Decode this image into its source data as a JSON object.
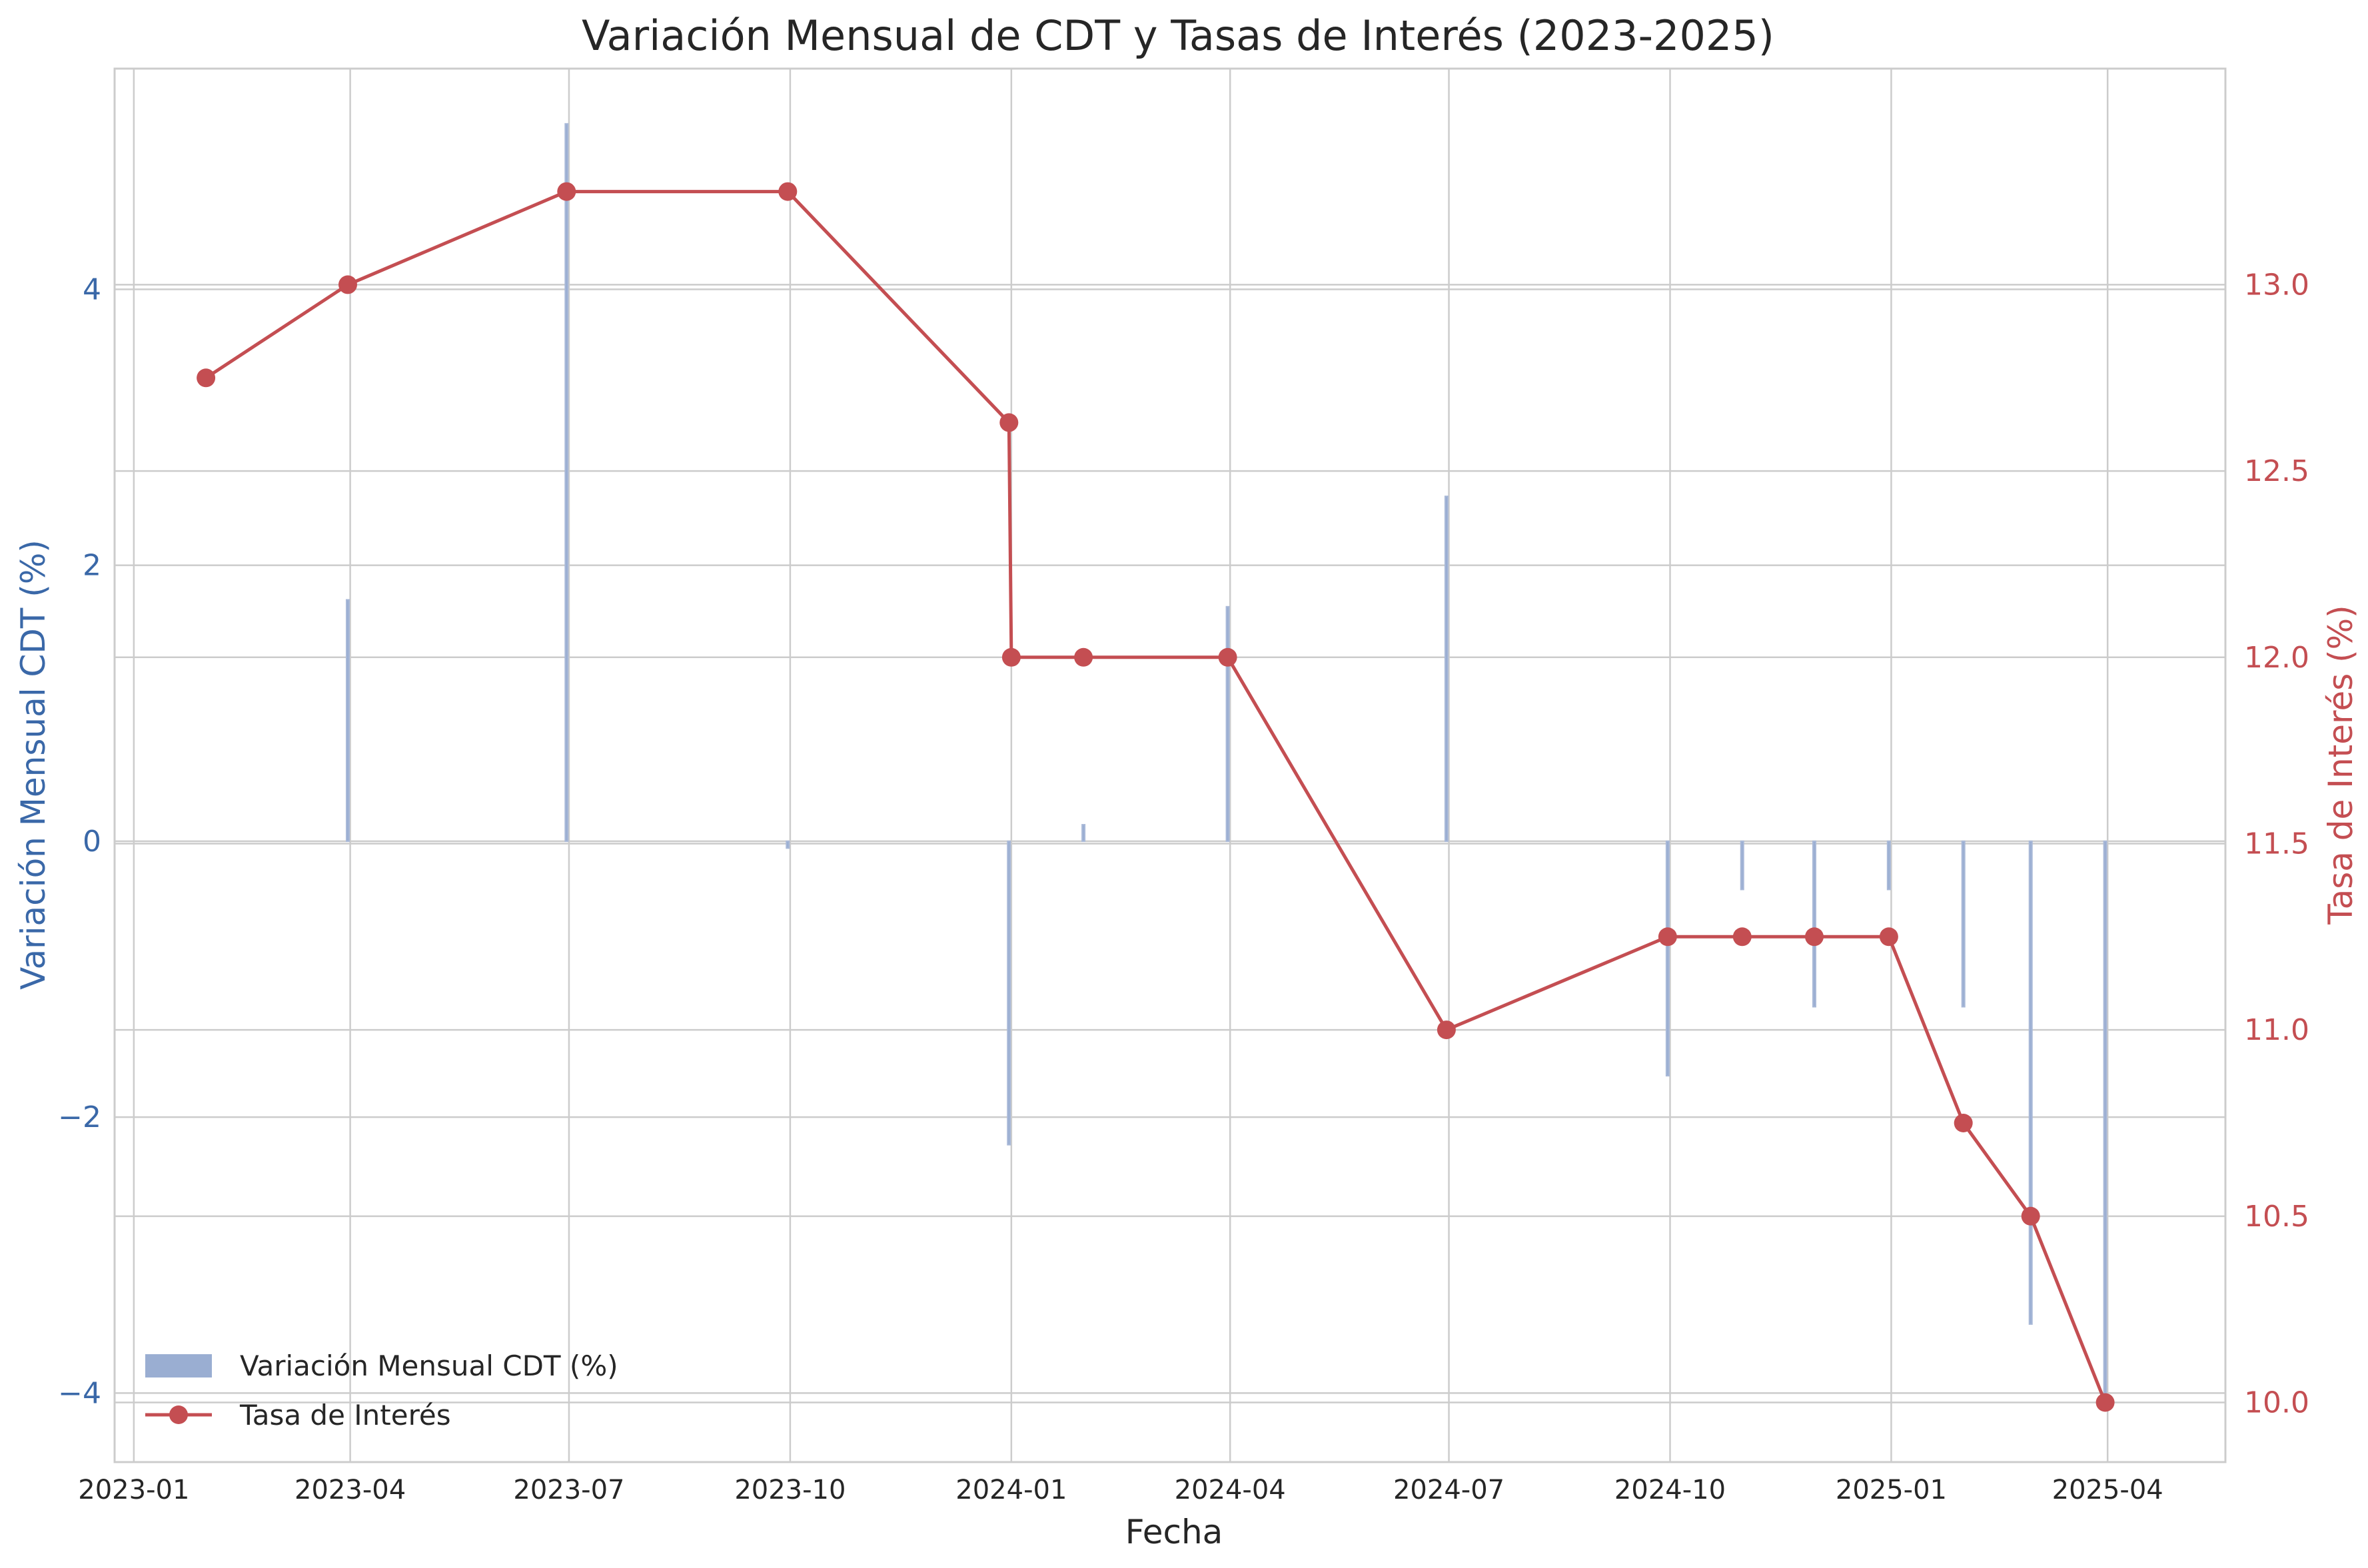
{
  "chart_data": {
    "type": "bar+line",
    "title": "Variación Mensual de CDT y Tasas de Interés (2023-2025)",
    "xlabel": "Fecha",
    "ylabel_left": "Variación Mensual CDT (%)",
    "ylabel_right": "Tasa de Interés (%)",
    "x_ticks": [
      "2023-01",
      "2023-04",
      "2023-07",
      "2023-10",
      "2024-01",
      "2024-04",
      "2024-07",
      "2024-10",
      "2025-01",
      "2025-04"
    ],
    "y_left_ticks": [
      "−4",
      "−2",
      "0",
      "2",
      "4"
    ],
    "y_right_ticks": [
      "10.0",
      "10.5",
      "11.0",
      "11.5",
      "12.0",
      "12.5",
      "13.0"
    ],
    "xlim": [
      "2022-12-24",
      "2025-05-20"
    ],
    "ylim_left": [
      -4.5,
      5.6
    ],
    "ylim_right": [
      9.84,
      13.58
    ],
    "grid": true,
    "legend_position": "lower-left",
    "colors": {
      "bars": "#9aaed2",
      "line": "#c44e52",
      "left_axis": "#3a68a8",
      "right_axis": "#c44e52"
    },
    "series": [
      {
        "name": "Variación Mensual CDT (%)",
        "type": "bar",
        "x": [
          "2023-03-31",
          "2023-06-30",
          "2023-09-30",
          "2023-12-31",
          "2024-01-31",
          "2024-03-31",
          "2024-06-30",
          "2024-09-30",
          "2024-10-31",
          "2024-11-30",
          "2024-12-31",
          "2025-01-31",
          "2025-02-28",
          "2025-03-31"
        ],
        "values": [
          1.75,
          5.2,
          -0.05,
          -2.2,
          0.12,
          1.7,
          2.5,
          -1.7,
          -0.35,
          -1.2,
          -0.35,
          -1.2,
          -3.5,
          -4.0
        ]
      },
      {
        "name": "Tasa de Interés",
        "type": "line",
        "x": [
          "2023-01-31",
          "2023-03-31",
          "2023-06-30",
          "2023-09-30",
          "2023-12-31",
          "2024-01-01",
          "2024-01-31",
          "2024-03-31",
          "2024-06-30",
          "2024-09-30",
          "2024-10-31",
          "2024-11-30",
          "2024-12-31",
          "2025-01-31",
          "2025-02-28",
          "2025-03-31"
        ],
        "values": [
          12.75,
          13.0,
          13.25,
          13.25,
          12.63,
          12.0,
          12.0,
          12.0,
          11.0,
          11.25,
          11.25,
          11.25,
          11.25,
          10.75,
          10.5,
          10.0
        ]
      }
    ]
  }
}
